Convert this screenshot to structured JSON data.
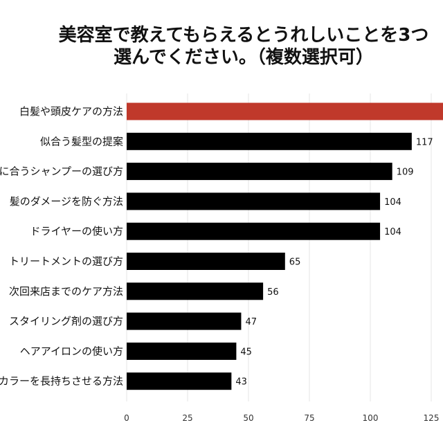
{
  "chart_data": {
    "type": "bar",
    "orientation": "horizontal",
    "title_lines": [
      "美容室で教えてもらえるとうれしいことを3つ",
      "選んでください。（複数選択可）"
    ],
    "categories": [
      "白髪や頭皮ケアの方法",
      "似合う髪型の提案",
      "自分に合うシャンプーの選び方",
      "髪のダメージを防ぐ方法",
      "ドライヤーの使い方",
      "トリートメントの選び方",
      "次回来店までのケア方法",
      "スタイリング剤の選び方",
      "ヘアアイロンの使い方",
      "カラーを長持ちさせる方法"
    ],
    "values": [
      140,
      117,
      109,
      104,
      104,
      65,
      56,
      47,
      45,
      43
    ],
    "value_labels": [
      "",
      "117",
      "109",
      "104",
      "104",
      "65",
      "56",
      "47",
      "45",
      "43"
    ],
    "highlight_index": 0,
    "bar_color": "#000000",
    "highlight_color": "#c0392b",
    "xticks": [
      0,
      25,
      50,
      75,
      100,
      125
    ],
    "xlim": [
      0,
      129
    ],
    "grid": true
  }
}
